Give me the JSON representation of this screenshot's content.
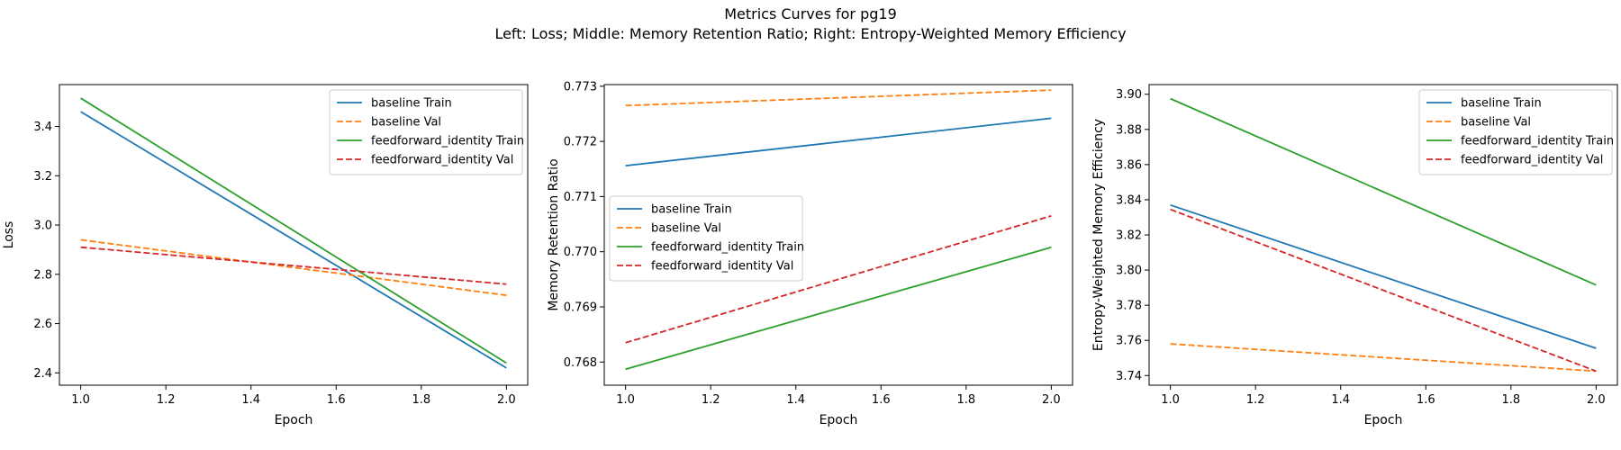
{
  "figure": {
    "title_line1": "Metrics Curves for pg19",
    "title_line2": "Left: Loss; Middle: Memory Retention Ratio; Right: Entropy-Weighted Memory Efficiency"
  },
  "chart_data": [
    {
      "type": "line",
      "xlabel": "Epoch",
      "ylabel": "Loss",
      "xlim": [
        0.95,
        2.05
      ],
      "ylim": [
        2.35,
        3.57
      ],
      "xticks": [
        1.0,
        1.2,
        1.4,
        1.6,
        1.8,
        2.0
      ],
      "yticks": [
        2.4,
        2.6,
        2.8,
        3.0,
        3.2,
        3.4
      ],
      "ytick_decimals": 1,
      "legend": "top-right",
      "series": [
        {
          "name": "baseline Train",
          "color": "#1f77b4",
          "dash": false,
          "x": [
            1.0,
            2.0
          ],
          "y": [
            3.46,
            2.42
          ]
        },
        {
          "name": "baseline Val",
          "color": "#ff7f0e",
          "dash": true,
          "x": [
            1.0,
            2.0
          ],
          "y": [
            2.94,
            2.715
          ]
        },
        {
          "name": "feedforward_identity Train",
          "color": "#2ca02c",
          "dash": false,
          "x": [
            1.0,
            2.0
          ],
          "y": [
            3.515,
            2.44
          ]
        },
        {
          "name": "feedforward_identity Val",
          "color": "#d62728",
          "dash": true,
          "x": [
            1.0,
            2.0
          ],
          "y": [
            2.91,
            2.76
          ]
        }
      ]
    },
    {
      "type": "line",
      "xlabel": "Epoch",
      "ylabel": "Memory Retention Ratio",
      "xlim": [
        0.95,
        2.05
      ],
      "ylim": [
        0.76758,
        0.77303
      ],
      "xticks": [
        1.0,
        1.2,
        1.4,
        1.6,
        1.8,
        2.0
      ],
      "yticks": [
        0.768,
        0.769,
        0.77,
        0.771,
        0.772,
        0.773
      ],
      "ytick_decimals": 3,
      "legend": "center-left",
      "series": [
        {
          "name": "baseline Train",
          "color": "#1f77b4",
          "dash": false,
          "x": [
            1.0,
            2.0
          ],
          "y": [
            0.77156,
            0.77242
          ]
        },
        {
          "name": "baseline Val",
          "color": "#ff7f0e",
          "dash": true,
          "x": [
            1.0,
            2.0
          ],
          "y": [
            0.77265,
            0.77293
          ]
        },
        {
          "name": "feedforward_identity Train",
          "color": "#2ca02c",
          "dash": false,
          "x": [
            1.0,
            2.0
          ],
          "y": [
            0.76787,
            0.77008
          ]
        },
        {
          "name": "feedforward_identity Val",
          "color": "#d62728",
          "dash": true,
          "x": [
            1.0,
            2.0
          ],
          "y": [
            0.76835,
            0.77065
          ]
        }
      ]
    },
    {
      "type": "line",
      "xlabel": "Epoch",
      "ylabel": "Entropy-Weighted Memory Efficiency",
      "xlim": [
        0.95,
        2.05
      ],
      "ylim": [
        3.7345,
        3.9055
      ],
      "xticks": [
        1.0,
        1.2,
        1.4,
        1.6,
        1.8,
        2.0
      ],
      "yticks": [
        3.74,
        3.76,
        3.78,
        3.8,
        3.82,
        3.84,
        3.86,
        3.88,
        3.9
      ],
      "ytick_decimals": 2,
      "legend": "top-right",
      "series": [
        {
          "name": "baseline Train",
          "color": "#1f77b4",
          "dash": false,
          "x": [
            1.0,
            2.0
          ],
          "y": [
            3.837,
            3.7555
          ]
        },
        {
          "name": "baseline Val",
          "color": "#ff7f0e",
          "dash": true,
          "x": [
            1.0,
            2.0
          ],
          "y": [
            3.758,
            3.7425
          ]
        },
        {
          "name": "feedforward_identity Train",
          "color": "#2ca02c",
          "dash": false,
          "x": [
            1.0,
            2.0
          ],
          "y": [
            3.8975,
            3.7915
          ]
        },
        {
          "name": "feedforward_identity Val",
          "color": "#d62728",
          "dash": true,
          "x": [
            1.0,
            2.0
          ],
          "y": [
            3.8345,
            3.7425
          ]
        }
      ]
    }
  ]
}
